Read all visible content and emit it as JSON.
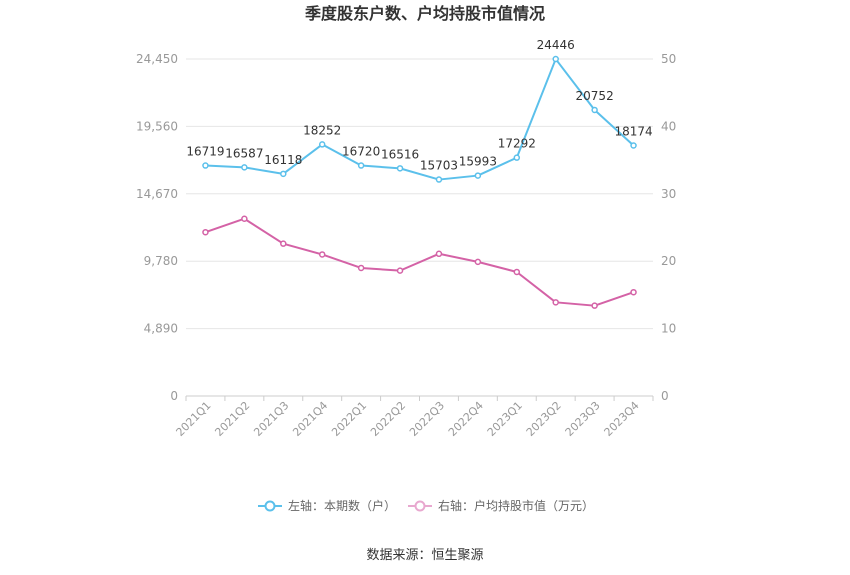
{
  "title": "季度股东户数、户均持股市值情况",
  "source": "数据来源：恒生聚源",
  "colors": {
    "left_series": "#5bc0eb",
    "right_series": "#d462a6",
    "grid": "#e6e6e6",
    "axis_text": "#999999"
  },
  "legend": [
    {
      "label": "左轴：本期数（户）",
      "color": "#5bc0eb"
    },
    {
      "label": "右轴：户均持股市值（万元）",
      "color": "#e8a8cf"
    }
  ],
  "chart_data": {
    "type": "line",
    "categories": [
      "2021Q1",
      "2021Q2",
      "2021Q3",
      "2021Q4",
      "2022Q1",
      "2022Q2",
      "2022Q3",
      "2022Q4",
      "2023Q1",
      "2023Q2",
      "2023Q3",
      "2023Q4"
    ],
    "left_axis": {
      "ticks": [
        "0",
        "4,890",
        "9,780",
        "14,670",
        "19,560",
        "24,450"
      ],
      "min": 0,
      "max": 24450
    },
    "right_axis": {
      "ticks": [
        "0",
        "10",
        "20",
        "30",
        "40",
        "50"
      ],
      "min": 0,
      "max": 50
    },
    "series": [
      {
        "name": "左轴：本期数（户）",
        "axis": "left",
        "values": [
          16719,
          16587,
          16118,
          18252,
          16720,
          16516,
          15703,
          15993,
          17292,
          24446,
          20752,
          18174
        ],
        "labels": [
          "16719",
          "16587",
          "16118",
          "18252",
          "16720",
          "16516",
          "15703",
          "15993",
          "17292",
          "24446",
          "20752",
          "18174"
        ]
      },
      {
        "name": "右轴：户均持股市值（万元）",
        "axis": "right",
        "values": [
          24.3,
          26.3,
          22.6,
          21.0,
          19.0,
          18.6,
          21.1,
          19.9,
          18.4,
          13.9,
          13.4,
          15.4
        ]
      }
    ],
    "grid": true,
    "legend_position": "bottom"
  }
}
